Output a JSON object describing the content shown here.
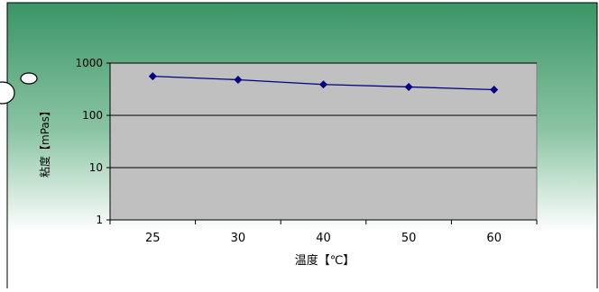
{
  "chart_data": {
    "type": "line",
    "xlabel": "温度【℃】",
    "ylabel": "粘度【mPas】",
    "y_scale": "log",
    "ylim": [
      1,
      1000
    ],
    "y_ticks": [
      "1",
      "10",
      "100",
      "1000"
    ],
    "categories": [
      "25",
      "30",
      "40",
      "50",
      "60"
    ],
    "series": [
      {
        "values": [
          560,
          480,
          390,
          350,
          310
        ]
      }
    ],
    "grid": true,
    "legend": "none"
  },
  "colors": {
    "background_gradient_top": "#3a9565",
    "background_gradient_bottom": "#ffffff",
    "plot_area": "#c0c0c0",
    "series_line": "#000080"
  }
}
